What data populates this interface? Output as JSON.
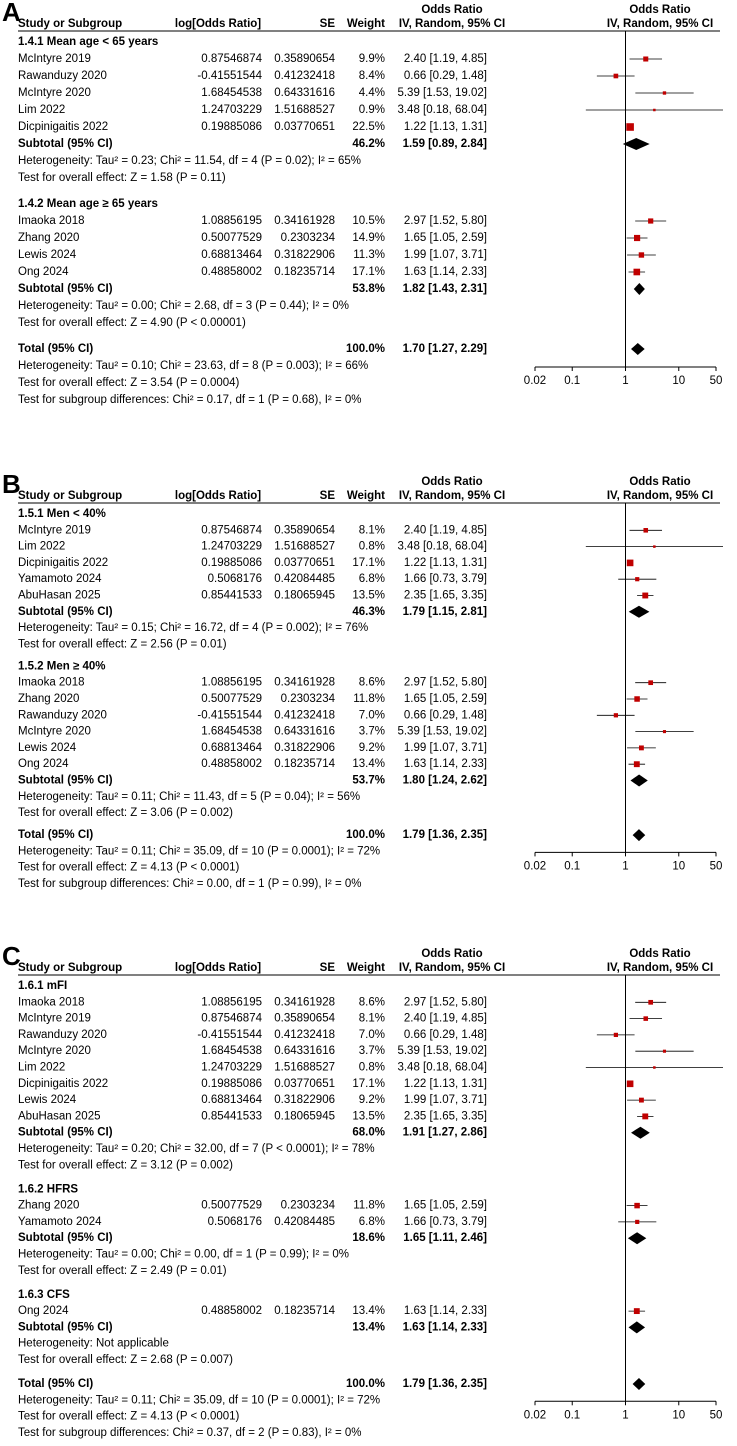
{
  "chart_data": [
    {
      "type": "forest",
      "panel": "A",
      "headers": {
        "study": "Study or Subgroup",
        "log_or": "log[Odds Ratio]",
        "se": "SE",
        "weight": "Weight",
        "effect": "Odds Ratio",
        "method": "IV, Random, 95% CI"
      },
      "groups": [
        {
          "title": "1.4.1 Mean age < 65 years",
          "studies": [
            "McIntyre 2019",
            "Rawanduzy 2020",
            "McIntyre 2020",
            "Lim 2022",
            "Dicpinigaitis 2022"
          ],
          "log_or": [
            0.87546874,
            -0.41551544,
            1.68454538,
            1.24703229,
            0.19885086
          ],
          "se": [
            0.35890654,
            0.41232418,
            0.64331616,
            1.51688527,
            0.03770651
          ],
          "weight": [
            9.9,
            8.4,
            4.4,
            0.9,
            22.5
          ],
          "weight_labels": [
            "9.9%",
            "8.4%",
            "4.4%",
            "0.9%",
            "22.5%"
          ],
          "or": [
            2.4,
            0.66,
            5.39,
            3.48,
            1.22
          ],
          "ci_low": [
            1.19,
            0.29,
            1.53,
            0.18,
            1.13
          ],
          "ci_high": [
            4.85,
            1.48,
            19.02,
            68.04,
            1.31
          ],
          "ci_labels": [
            "2.40 [1.19, 4.85]",
            "0.66 [0.29, 1.48]",
            "5.39 [1.53, 19.02]",
            "3.48 [0.18, 68.04]",
            "1.22 [1.13, 1.31]"
          ],
          "subtotal": {
            "label": "Subtotal (95% CI)",
            "weight_label": "46.2%",
            "or": 1.59,
            "ci_low": 0.89,
            "ci_high": 2.84,
            "ci_label": "1.59 [0.89, 2.84]"
          },
          "notes": [
            "Heterogeneity: Tau² = 0.23; Chi² = 11.54, df = 4 (P = 0.02); I² = 65%",
            "Test for overall effect: Z = 1.58 (P = 0.11)"
          ]
        },
        {
          "title": "1.4.2 Mean age ≥ 65 years",
          "studies": [
            "Imaoka 2018",
            "Zhang 2020",
            "Lewis 2024",
            "Ong 2024"
          ],
          "log_or": [
            1.08856195,
            0.50077529,
            0.68813464,
            0.48858002
          ],
          "se": [
            0.34161928,
            0.2303234,
            0.31822906,
            0.18235714
          ],
          "weight": [
            10.5,
            14.9,
            11.3,
            17.1
          ],
          "weight_labels": [
            "10.5%",
            "14.9%",
            "11.3%",
            "17.1%"
          ],
          "or": [
            2.97,
            1.65,
            1.99,
            1.63
          ],
          "ci_low": [
            1.52,
            1.05,
            1.07,
            1.14
          ],
          "ci_high": [
            5.8,
            2.59,
            3.71,
            2.33
          ],
          "ci_labels": [
            "2.97 [1.52, 5.80]",
            "1.65 [1.05, 2.59]",
            "1.99 [1.07, 3.71]",
            "1.63 [1.14, 2.33]"
          ],
          "subtotal": {
            "label": "Subtotal (95% CI)",
            "weight_label": "53.8%",
            "or": 1.82,
            "ci_low": 1.43,
            "ci_high": 2.31,
            "ci_label": "1.82 [1.43, 2.31]"
          },
          "notes": [
            "Heterogeneity: Tau² = 0.00; Chi² = 2.68, df = 3 (P = 0.44); I² = 0%",
            "Test for overall effect: Z = 4.90 (P < 0.00001)"
          ]
        }
      ],
      "total": {
        "label": "Total (95% CI)",
        "weight_label": "100.0%",
        "or": 1.7,
        "ci_low": 1.27,
        "ci_high": 2.29,
        "ci_label": "1.70 [1.27, 2.29]",
        "notes": [
          "Heterogeneity: Tau² = 0.10; Chi² = 23.63, df = 8 (P = 0.003); I² = 66%",
          "Test for overall effect: Z = 3.54 (P = 0.0004)",
          "Test for subgroup differences: Chi² = 0.17, df = 1 (P = 0.68), I² = 0%"
        ]
      },
      "xlim": [
        0.02,
        50
      ],
      "xticks": [
        0.02,
        0.1,
        1,
        10,
        50
      ],
      "log_x": true,
      "marker_color": "#c00000"
    },
    {
      "type": "forest",
      "panel": "B",
      "headers": {
        "study": "Study or Subgroup",
        "log_or": "log[Odds Ratio]",
        "se": "SE",
        "weight": "Weight",
        "effect": "Odds Ratio",
        "method": "IV, Random, 95% CI"
      },
      "groups": [
        {
          "title": "1.5.1 Men < 40%",
          "studies": [
            "McIntyre 2019",
            "Lim 2022",
            "Dicpinigaitis 2022",
            "Yamamoto 2024",
            "AbuHasan 2025"
          ],
          "log_or": [
            0.87546874,
            1.24703229,
            0.19885086,
            0.5068176,
            0.85441533
          ],
          "se": [
            0.35890654,
            1.51688527,
            0.03770651,
            0.42084485,
            0.18065945
          ],
          "weight": [
            8.1,
            0.8,
            17.1,
            6.8,
            13.5
          ],
          "weight_labels": [
            "8.1%",
            "0.8%",
            "17.1%",
            "6.8%",
            "13.5%"
          ],
          "or": [
            2.4,
            3.48,
            1.22,
            1.66,
            2.35
          ],
          "ci_low": [
            1.19,
            0.18,
            1.13,
            0.73,
            1.65
          ],
          "ci_high": [
            4.85,
            68.04,
            1.31,
            3.79,
            3.35
          ],
          "ci_labels": [
            "2.40 [1.19, 4.85]",
            "3.48 [0.18, 68.04]",
            "1.22 [1.13, 1.31]",
            "1.66 [0.73, 3.79]",
            "2.35 [1.65, 3.35]"
          ],
          "subtotal": {
            "label": "Subtotal (95% CI)",
            "weight_label": "46.3%",
            "or": 1.79,
            "ci_low": 1.15,
            "ci_high": 2.81,
            "ci_label": "1.79 [1.15, 2.81]"
          },
          "notes": [
            "Heterogeneity: Tau² = 0.15; Chi² = 16.72, df = 4 (P = 0.002); I² = 76%",
            "Test for overall effect: Z = 2.56 (P = 0.01)"
          ]
        },
        {
          "title": "1.5.2 Men ≥ 40%",
          "studies": [
            "Imaoka 2018",
            "Zhang 2020",
            "Rawanduzy 2020",
            "McIntyre 2020",
            "Lewis 2024",
            "Ong 2024"
          ],
          "log_or": [
            1.08856195,
            0.50077529,
            -0.41551544,
            1.68454538,
            0.68813464,
            0.48858002
          ],
          "se": [
            0.34161928,
            0.2303234,
            0.41232418,
            0.64331616,
            0.31822906,
            0.18235714
          ],
          "weight": [
            8.6,
            11.8,
            7.0,
            3.7,
            9.2,
            13.4
          ],
          "weight_labels": [
            "8.6%",
            "11.8%",
            "7.0%",
            "3.7%",
            "9.2%",
            "13.4%"
          ],
          "or": [
            2.97,
            1.65,
            0.66,
            5.39,
            1.99,
            1.63
          ],
          "ci_low": [
            1.52,
            1.05,
            0.29,
            1.53,
            1.07,
            1.14
          ],
          "ci_high": [
            5.8,
            2.59,
            1.48,
            19.02,
            3.71,
            2.33
          ],
          "ci_labels": [
            "2.97 [1.52, 5.80]",
            "1.65 [1.05, 2.59]",
            "0.66 [0.29, 1.48]",
            "5.39 [1.53, 19.02]",
            "1.99 [1.07, 3.71]",
            "1.63 [1.14, 2.33]"
          ],
          "subtotal": {
            "label": "Subtotal (95% CI)",
            "weight_label": "53.7%",
            "or": 1.8,
            "ci_low": 1.24,
            "ci_high": 2.62,
            "ci_label": "1.80 [1.24, 2.62]"
          },
          "notes": [
            "Heterogeneity: Tau² = 0.11; Chi² = 11.43, df = 5 (P = 0.04); I² = 56%",
            "Test for overall effect: Z = 3.06 (P = 0.002)"
          ]
        }
      ],
      "total": {
        "label": "Total (95% CI)",
        "weight_label": "100.0%",
        "or": 1.79,
        "ci_low": 1.36,
        "ci_high": 2.35,
        "ci_label": "1.79 [1.36, 2.35]",
        "notes": [
          "Heterogeneity: Tau² = 0.11; Chi² = 35.09, df = 10 (P = 0.0001); I² = 72%",
          "Test for overall effect: Z = 4.13 (P < 0.0001)",
          "Test for subgroup differences: Chi² = 0.00, df = 1 (P = 0.99), I² = 0%"
        ]
      },
      "xlim": [
        0.02,
        50
      ],
      "xticks": [
        0.02,
        0.1,
        1,
        10,
        50
      ],
      "log_x": true,
      "marker_color": "#c00000"
    },
    {
      "type": "forest",
      "panel": "C",
      "headers": {
        "study": "Study or Subgroup",
        "log_or": "log[Odds Ratio]",
        "se": "SE",
        "weight": "Weight",
        "effect": "Odds Ratio",
        "method": "IV, Random, 95% CI"
      },
      "groups": [
        {
          "title": "1.6.1 mFI",
          "studies": [
            "Imaoka 2018",
            "McIntyre 2019",
            "Rawanduzy 2020",
            "McIntyre 2020",
            "Lim 2022",
            "Dicpinigaitis 2022",
            "Lewis 2024",
            "AbuHasan 2025"
          ],
          "log_or": [
            1.08856195,
            0.87546874,
            -0.41551544,
            1.68454538,
            1.24703229,
            0.19885086,
            0.68813464,
            0.85441533
          ],
          "se": [
            0.34161928,
            0.35890654,
            0.41232418,
            0.64331616,
            1.51688527,
            0.03770651,
            0.31822906,
            0.18065945
          ],
          "weight": [
            8.6,
            8.1,
            7.0,
            3.7,
            0.8,
            17.1,
            9.2,
            13.5
          ],
          "weight_labels": [
            "8.6%",
            "8.1%",
            "7.0%",
            "3.7%",
            "0.8%",
            "17.1%",
            "9.2%",
            "13.5%"
          ],
          "or": [
            2.97,
            2.4,
            0.66,
            5.39,
            3.48,
            1.22,
            1.99,
            2.35
          ],
          "ci_low": [
            1.52,
            1.19,
            0.29,
            1.53,
            0.18,
            1.13,
            1.07,
            1.65
          ],
          "ci_high": [
            5.8,
            4.85,
            1.48,
            19.02,
            68.04,
            1.31,
            3.71,
            3.35
          ],
          "ci_labels": [
            "2.97 [1.52, 5.80]",
            "2.40 [1.19, 4.85]",
            "0.66 [0.29, 1.48]",
            "5.39 [1.53, 19.02]",
            "3.48 [0.18, 68.04]",
            "1.22 [1.13, 1.31]",
            "1.99 [1.07, 3.71]",
            "2.35 [1.65, 3.35]"
          ],
          "subtotal": {
            "label": "Subtotal (95% CI)",
            "weight_label": "68.0%",
            "or": 1.91,
            "ci_low": 1.27,
            "ci_high": 2.86,
            "ci_label": "1.91 [1.27, 2.86]"
          },
          "notes": [
            "Heterogeneity: Tau² = 0.20; Chi² = 32.00, df = 7 (P < 0.0001); I² = 78%",
            "Test for overall effect: Z = 3.12 (P = 0.002)"
          ]
        },
        {
          "title": "1.6.2 HFRS",
          "studies": [
            "Zhang 2020",
            "Yamamoto 2024"
          ],
          "log_or": [
            0.50077529,
            0.5068176
          ],
          "se": [
            0.2303234,
            0.42084485
          ],
          "weight": [
            11.8,
            6.8
          ],
          "weight_labels": [
            "11.8%",
            "6.8%"
          ],
          "or": [
            1.65,
            1.66
          ],
          "ci_low": [
            1.05,
            0.73
          ],
          "ci_high": [
            2.59,
            3.79
          ],
          "ci_labels": [
            "1.65 [1.05, 2.59]",
            "1.66 [0.73, 3.79]"
          ],
          "subtotal": {
            "label": "Subtotal (95% CI)",
            "weight_label": "18.6%",
            "or": 1.65,
            "ci_low": 1.11,
            "ci_high": 2.46,
            "ci_label": "1.65 [1.11, 2.46]"
          },
          "notes": [
            "Heterogeneity: Tau² = 0.00; Chi² = 0.00, df = 1 (P = 0.99); I² = 0%",
            "Test for overall effect: Z = 2.49 (P = 0.01)"
          ]
        },
        {
          "title": "1.6.3 CFS",
          "studies": [
            "Ong 2024"
          ],
          "log_or": [
            0.48858002
          ],
          "se": [
            0.18235714
          ],
          "weight": [
            13.4
          ],
          "weight_labels": [
            "13.4%"
          ],
          "or": [
            1.63
          ],
          "ci_low": [
            1.14
          ],
          "ci_high": [
            2.33
          ],
          "ci_labels": [
            "1.63 [1.14, 2.33]"
          ],
          "subtotal": {
            "label": "Subtotal (95% CI)",
            "weight_label": "13.4%",
            "or": 1.63,
            "ci_low": 1.14,
            "ci_high": 2.33,
            "ci_label": "1.63 [1.14, 2.33]"
          },
          "notes": [
            "Heterogeneity: Not applicable",
            "Test for overall effect: Z = 2.68 (P = 0.007)"
          ]
        }
      ],
      "total": {
        "label": "Total (95% CI)",
        "weight_label": "100.0%",
        "or": 1.79,
        "ci_low": 1.36,
        "ci_high": 2.35,
        "ci_label": "1.79 [1.36, 2.35]",
        "notes": [
          "Heterogeneity: Tau² = 0.11; Chi² = 35.09, df = 10 (P = 0.0001); I² = 72%",
          "Test for overall effect: Z = 4.13 (P < 0.0001)",
          "Test for subgroup differences: Chi² = 0.37, df = 2 (P = 0.83), I² = 0%"
        ]
      },
      "xlim": [
        0.02,
        50
      ],
      "xticks": [
        0.02,
        0.1,
        1,
        10,
        50
      ],
      "log_x": true,
      "marker_color": "#c00000"
    }
  ]
}
